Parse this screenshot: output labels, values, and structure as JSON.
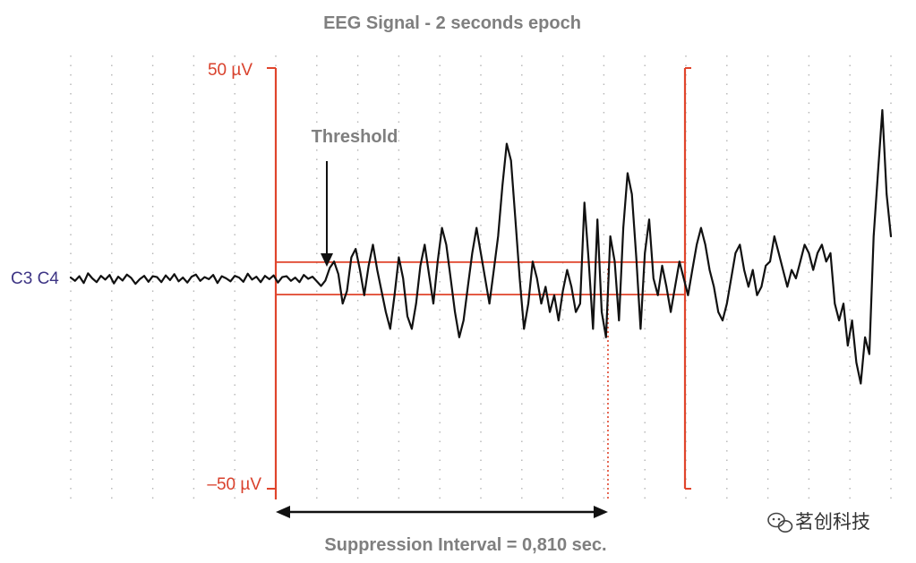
{
  "chart_data": {
    "type": "line",
    "title": "EEG Signal - 2 seconds epoch",
    "channel_label": "C3 C4",
    "scale_top_label": "50 µV",
    "scale_bottom_label": "–50 µV",
    "threshold_label": "Threshold",
    "suppression_label": "Suppression Interval = 0,810 sec.",
    "duration_sec": 2.0,
    "grid": true,
    "ylim": [
      -50,
      50
    ],
    "threshold_uV": [
      -3,
      3
    ],
    "suppression_interval_sec": [
      0.0,
      0.81
    ],
    "series": [
      {
        "values": [
          0.2,
          -0.6,
          0.5,
          -1.1,
          1.2,
          0.0,
          -0.9,
          0.6,
          -0.3,
          0.8,
          -1.2,
          0.4,
          -0.5,
          0.9,
          0.1,
          -1.3,
          -0.2,
          0.6,
          -0.8,
          0.5,
          0.3,
          -0.9,
          0.7,
          -0.4,
          1.0,
          -0.7,
          0.2,
          -1.0,
          0.4,
          0.9,
          -0.6,
          0.3,
          -0.2,
          0.8,
          -1.1,
          0.5,
          0.0,
          -0.7,
          0.6,
          0.2,
          -0.8,
          1.1,
          -0.3,
          0.4,
          -0.9,
          0.6,
          -0.2,
          0.7,
          -1.0,
          0.3,
          0.5,
          -0.6,
          0.2,
          -0.9,
          0.8,
          -0.1,
          0.4,
          -0.7,
          -1.8,
          -0.5,
          2.5,
          4.0,
          1.0,
          -6.0,
          -3.0,
          5.0,
          7.0,
          2.0,
          -4.0,
          3.0,
          8.0,
          2.0,
          -3.0,
          -8.0,
          -12.0,
          -4.0,
          5.0,
          0.0,
          -9.0,
          -12.0,
          -6.0,
          3.0,
          8.0,
          1.0,
          -6.0,
          4.0,
          12.0,
          8.0,
          0.0,
          -8.0,
          -14.0,
          -10.0,
          -2.0,
          6.0,
          12.0,
          6.0,
          0.0,
          -6.0,
          2.0,
          10.0,
          22.0,
          32.0,
          28.0,
          14.0,
          0.0,
          -12.0,
          -6.0,
          4.0,
          0.0,
          -6.0,
          -2.0,
          -8.0,
          -4.0,
          -10.0,
          -3.0,
          2.0,
          -2.0,
          -8.0,
          -6.0,
          18.0,
          4.0,
          -12.0,
          14.0,
          -8.0,
          -14.0,
          10.0,
          4.0,
          -10.0,
          12.0,
          25.0,
          20.0,
          5.0,
          -12.0,
          6.0,
          14.0,
          0.0,
          -4.0,
          3.0,
          -2.0,
          -8.0,
          -2.0,
          4.0,
          0.0,
          -4.0,
          2.0,
          8.0,
          12.0,
          8.0,
          2.0,
          -2.0,
          -8.0,
          -10.0,
          -6.0,
          0.0,
          6.0,
          8.0,
          2.0,
          -2.0,
          2.0,
          -4.0,
          -2.0,
          3.0,
          4.0,
          10.0,
          6.0,
          2.0,
          -2.0,
          2.0,
          0.0,
          4.0,
          8.0,
          6.0,
          2.0,
          6.0,
          8.0,
          4.0,
          6.0,
          -6.0,
          -10.0,
          -6.0,
          -16.0,
          -10.0,
          -20.0,
          -25.0,
          -14.0,
          -18.0,
          10.0,
          25.0,
          40.0,
          20.0,
          10.0
        ]
      }
    ]
  },
  "watermark": {
    "icon": "wechat-icon",
    "text": "茗创科技"
  },
  "colors": {
    "annotation_red": "#e0452c",
    "signal": "#111111",
    "grid": "#b5b5b5",
    "title_gray": "#7f7f7f",
    "channel_blue": "#3d3484"
  }
}
